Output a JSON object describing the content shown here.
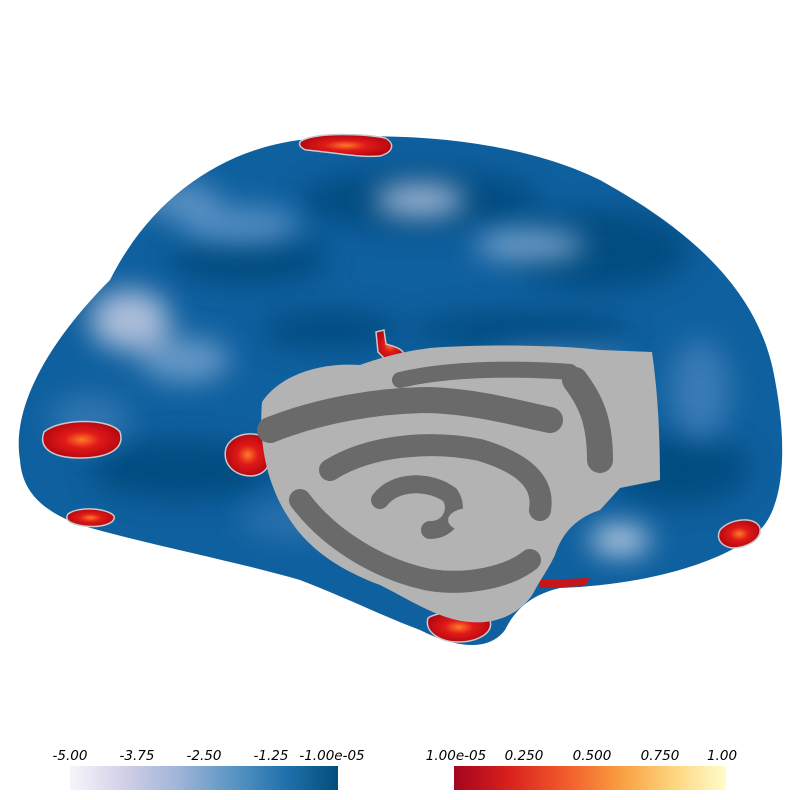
{
  "colorbar_negative": {
    "ticks": [
      "-5.00",
      "-3.75",
      "-2.50",
      "-1.25",
      "-1.00e-05"
    ],
    "colors": [
      "#f7f5fb",
      "#d2d0e6",
      "#a1b5d8",
      "#5c97c5",
      "#2172ad",
      "#034d7c"
    ]
  },
  "colorbar_positive": {
    "ticks": [
      "1.00e-05",
      "0.250",
      "0.500",
      "0.750",
      "1.00"
    ],
    "colors": [
      "#a3051f",
      "#d9201c",
      "#f0582a",
      "#f99a3e",
      "#fdd37b",
      "#fffdcb"
    ]
  },
  "surface": {
    "base_color": "#0f609f",
    "medial_wall_light": "#b3b3b3",
    "medial_wall_dark": "#6a6a6a",
    "hotspot_color": "#cc1016"
  }
}
